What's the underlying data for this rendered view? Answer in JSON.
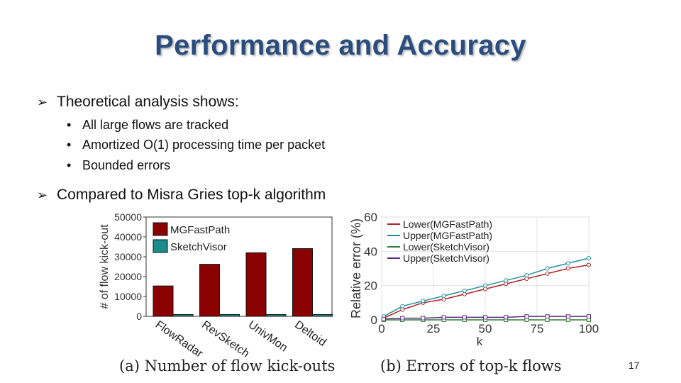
{
  "slide": {
    "title": "Performance and Accuracy",
    "bullets": [
      {
        "text": "Theoretical analysis shows:",
        "subbullets": [
          "All large flows are tracked",
          "Amortized O(1) processing time per packet",
          "Bounded errors"
        ]
      },
      {
        "text": "Compared to Misra Gries top-k algorithm"
      }
    ],
    "page_number": "17",
    "bullet_glyph": "➢",
    "subbullet_glyph": "•"
  },
  "chart_data": [
    {
      "type": "bar",
      "caption": "(a) Number of flow kick-outs",
      "ylabel": "# of flow kick-out",
      "categories": [
        "FlowRadar",
        "RevSketch",
        "UnivMon",
        "Deltoid"
      ],
      "ylim": [
        0,
        50000
      ],
      "yticks": [
        "0",
        "10000",
        "20000",
        "30000",
        "40000",
        "50000"
      ],
      "series": [
        {
          "name": "MGFastPath",
          "color": "#8b0000",
          "values": [
            15300,
            26200,
            32000,
            34100
          ]
        },
        {
          "name": "SketchVisor",
          "color": "#1a8c8c",
          "values": [
            900,
            900,
            900,
            900
          ]
        }
      ],
      "legend": "top-left",
      "grid": false
    },
    {
      "type": "line",
      "caption": "(b) Errors of top-k flows",
      "xlabel": "k",
      "ylabel": "Relative error (%)",
      "xlim": [
        0,
        100
      ],
      "ylim": [
        0,
        60
      ],
      "xticks": [
        "0",
        "25",
        "50",
        "75",
        "100"
      ],
      "yticks": [
        "0",
        "20",
        "40",
        "60"
      ],
      "legend": "top-left",
      "grid": true,
      "series": [
        {
          "name": "Lower(MGFastPath)",
          "color": "#b22222",
          "marker": "circle",
          "x": [
            1,
            10,
            20,
            30,
            40,
            50,
            60,
            70,
            80,
            90,
            100
          ],
          "y": [
            1,
            6,
            10,
            12,
            15,
            18,
            21,
            24,
            27,
            30,
            32
          ]
        },
        {
          "name": "Upper(MGFastPath)",
          "color": "#1e90a0",
          "marker": "circle",
          "x": [
            1,
            10,
            20,
            30,
            40,
            50,
            60,
            70,
            80,
            90,
            100
          ],
          "y": [
            2,
            8,
            11,
            14,
            17,
            20,
            23,
            26,
            30,
            33,
            36
          ]
        },
        {
          "name": "Lower(SketchVisor)",
          "color": "#2e7d32",
          "marker": "square",
          "x": [
            1,
            10,
            20,
            30,
            40,
            50,
            60,
            70,
            80,
            90,
            100
          ],
          "y": [
            0,
            0,
            0,
            0,
            0,
            0,
            0,
            0,
            0,
            0,
            0
          ]
        },
        {
          "name": "Upper(SketchVisor)",
          "color": "#5b2c83",
          "marker": "square",
          "x": [
            1,
            10,
            20,
            30,
            40,
            50,
            60,
            70,
            80,
            90,
            100
          ],
          "y": [
            0.5,
            1,
            1,
            1.5,
            1.5,
            1.5,
            1.5,
            2,
            2,
            2,
            2
          ]
        }
      ]
    }
  ]
}
